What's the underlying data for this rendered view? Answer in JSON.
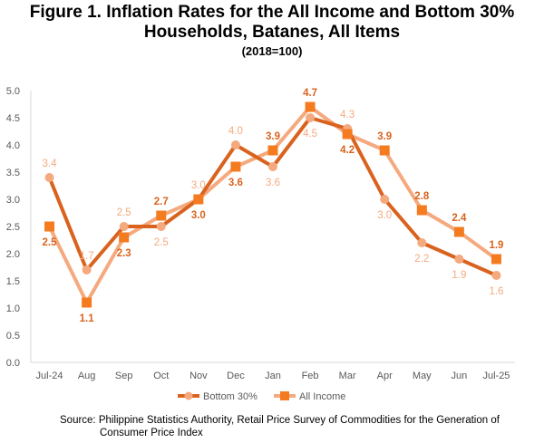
{
  "title_line1": "Figure 1. Inflation Rates for the All Income and Bottom 30%",
  "title_line2": "Households, Batanes, All Items",
  "subtitle": "(2018=100)",
  "source_line1": "Source: Philippine Statistics Authority, Retail Price Survey of Commodities for the Generation of",
  "source_line2": "Consumer Price Index",
  "colors": {
    "bottom30": "#D9631E",
    "all_income": "#F5A97E",
    "all_income_marker": "#F47B20",
    "axis": "#D9D9D9",
    "text": "#595959"
  },
  "chart_data": {
    "type": "line",
    "categories": [
      "Jul-24",
      "Aug",
      "Sep",
      "Oct",
      "Nov",
      "Dec",
      "Jan",
      "Feb",
      "Mar",
      "Apr",
      "May",
      "Jun",
      "Jul-25"
    ],
    "ylim": [
      0,
      5
    ],
    "yticks": [
      "0.0",
      "0.5",
      "1.0",
      "1.5",
      "2.0",
      "2.5",
      "3.0",
      "3.5",
      "4.0",
      "4.5",
      "5.0"
    ],
    "grid": false,
    "legend": "bottom",
    "series": [
      {
        "name": "Bottom 30%",
        "values": [
          3.4,
          1.7,
          2.5,
          2.5,
          3.0,
          4.0,
          3.6,
          4.5,
          4.3,
          3.0,
          2.2,
          1.9,
          1.6
        ]
      },
      {
        "name": "All Income",
        "values": [
          2.5,
          1.1,
          2.3,
          2.7,
          3.0,
          3.6,
          3.9,
          4.7,
          4.2,
          3.9,
          2.8,
          2.4,
          1.9
        ]
      }
    ]
  }
}
